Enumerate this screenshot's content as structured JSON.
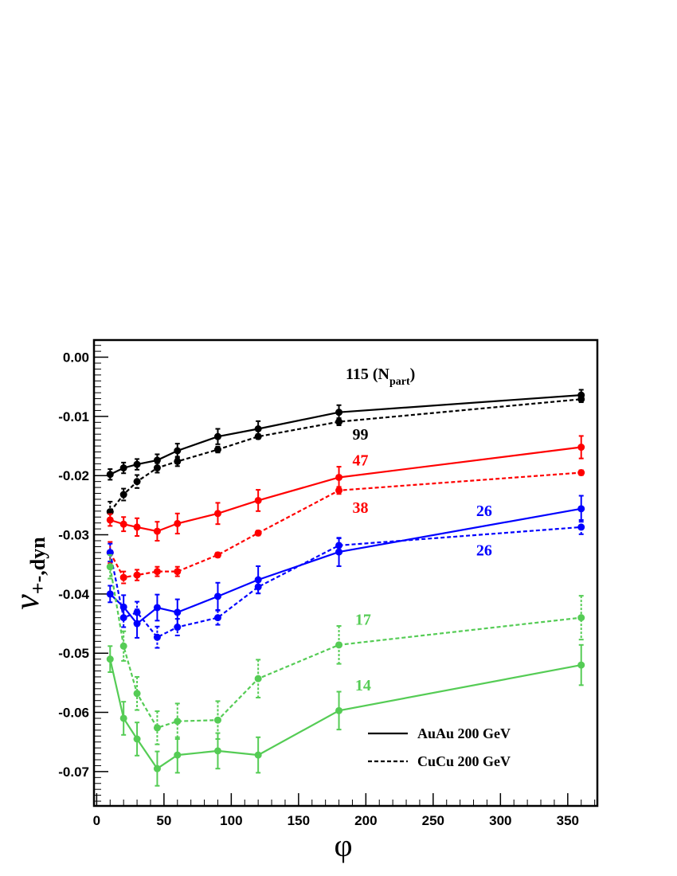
{
  "chart_data": {
    "type": "line",
    "title": "",
    "xlabel": "φ",
    "ylabel": {
      "main": "ν",
      "sub": "+-,dyn"
    },
    "xlim": [
      -2,
      372
    ],
    "ylim": [
      -0.0758,
      0.0029
    ],
    "xticks": [
      0,
      50,
      100,
      150,
      200,
      250,
      300,
      350
    ],
    "xtick_labels": [
      "0",
      "50",
      "100",
      "150",
      "200",
      "250",
      "300",
      "350"
    ],
    "yticks": [
      0.0,
      -0.01,
      -0.02,
      -0.03,
      -0.04,
      -0.05,
      -0.06,
      -0.07
    ],
    "ytick_labels": [
      "0.00",
      "-0.01",
      "-0.02",
      "-0.03",
      "-0.04",
      "-0.05",
      "-0.06",
      "-0.07"
    ],
    "grid": false,
    "legend": {
      "placement": "bottom-right",
      "entries": [
        {
          "label": "AuAu 200 GeV",
          "style": "solid"
        },
        {
          "label": "CuCu 200 GeV",
          "style": "dashed"
        }
      ]
    },
    "x": [
      10,
      20,
      30,
      45,
      60,
      90,
      120,
      180,
      360
    ],
    "series": [
      {
        "name": "AuAu 115",
        "label": "115",
        "color": "#000000",
        "style": "solid",
        "values": [
          -0.0198,
          -0.0187,
          -0.0181,
          -0.0174,
          -0.0158,
          -0.0134,
          -0.0121,
          -0.0093,
          -0.0064
        ],
        "errors": [
          0.0009,
          0.0009,
          0.0009,
          0.001,
          0.0012,
          0.0013,
          0.0013,
          0.0012,
          0.0009
        ]
      },
      {
        "name": "CuCu 99",
        "label": "99",
        "color": "#000000",
        "style": "dashed",
        "values": [
          -0.0261,
          -0.0232,
          -0.021,
          -0.0187,
          -0.0176,
          -0.0156,
          -0.0134,
          -0.0109,
          -0.0071
        ],
        "errors": [
          0.0017,
          0.001,
          0.0011,
          0.0008,
          0.0008,
          0.0005,
          0.0004,
          0.0006,
          0.0005
        ]
      },
      {
        "name": "AuAu 47",
        "label": "47",
        "color": "#ff0000",
        "style": "solid",
        "values": [
          -0.0275,
          -0.0282,
          -0.0287,
          -0.0294,
          -0.0281,
          -0.0264,
          -0.0242,
          -0.0203,
          -0.0152
        ],
        "errors": [
          0.001,
          0.0012,
          0.0015,
          0.0016,
          0.0017,
          0.0018,
          0.0018,
          0.0018,
          0.0019
        ]
      },
      {
        "name": "CuCu 38",
        "label": "38",
        "color": "#ff0000",
        "style": "dashed",
        "values": [
          -0.033,
          -0.0372,
          -0.0368,
          -0.0362,
          -0.0362,
          -0.0334,
          -0.0297,
          -0.0225,
          -0.0195
        ],
        "errors": [
          0.0018,
          0.001,
          0.0009,
          0.0008,
          0.0008,
          0.0004,
          0.0004,
          0.0006,
          0.0004
        ]
      },
      {
        "name": "AuAu 26",
        "label": "26",
        "color": "#0000ff",
        "style": "solid",
        "values": [
          -0.04,
          -0.0422,
          -0.045,
          -0.0423,
          -0.0431,
          -0.0404,
          -0.0376,
          -0.0329,
          -0.0256
        ],
        "errors": [
          0.0014,
          0.002,
          0.0024,
          0.0022,
          0.0022,
          0.0023,
          0.0023,
          0.0024,
          0.0022
        ]
      },
      {
        "name": "CuCu 26",
        "label": "26",
        "color": "#0000ff",
        "style": "dashed",
        "values": [
          -0.033,
          -0.044,
          -0.0431,
          -0.0473,
          -0.0456,
          -0.044,
          -0.0388,
          -0.0318,
          -0.0287
        ],
        "errors": [
          0.0015,
          0.0016,
          0.0018,
          0.0018,
          0.0014,
          0.0012,
          0.0011,
          0.0012,
          0.0012
        ]
      },
      {
        "name": "AuAu 14",
        "label": "14",
        "color": "#55cc55",
        "style": "solid",
        "values": [
          -0.051,
          -0.061,
          -0.0645,
          -0.0695,
          -0.0672,
          -0.0665,
          -0.0672,
          -0.0597,
          -0.052
        ],
        "errors": [
          0.0022,
          0.0028,
          0.0028,
          0.0029,
          0.003,
          0.003,
          0.003,
          0.0032,
          0.0034
        ]
      },
      {
        "name": "CuCu 17",
        "label": "17",
        "color": "#55cc55",
        "style": "dashed",
        "values": [
          -0.0354,
          -0.0488,
          -0.0568,
          -0.0626,
          -0.0615,
          -0.0613,
          -0.0543,
          -0.0486,
          -0.044
        ],
        "errors": [
          0.002,
          0.0025,
          0.0028,
          0.0028,
          0.003,
          0.0032,
          0.0032,
          0.0032,
          0.0037
        ]
      }
    ],
    "annotations": [
      {
        "text": "115 (N",
        "sub": "part",
        "after": ")",
        "x": 185,
        "y": -0.0037,
        "color": "#000000"
      },
      {
        "text": "99",
        "x": 190,
        "y": -0.0139,
        "color": "#000000"
      },
      {
        "text": "47",
        "x": 190,
        "y": -0.0183,
        "color": "#ff0000"
      },
      {
        "text": "38",
        "x": 190,
        "y": -0.0263,
        "color": "#ff0000"
      },
      {
        "text": "26",
        "x": 282,
        "y": -0.0268,
        "color": "#0000ff"
      },
      {
        "text": "26",
        "x": 282,
        "y": -0.0335,
        "color": "#0000ff"
      },
      {
        "text": "17",
        "x": 192,
        "y": -0.0452,
        "color": "#55cc55"
      },
      {
        "text": "14",
        "x": 192,
        "y": -0.0563,
        "color": "#55cc55"
      }
    ]
  }
}
